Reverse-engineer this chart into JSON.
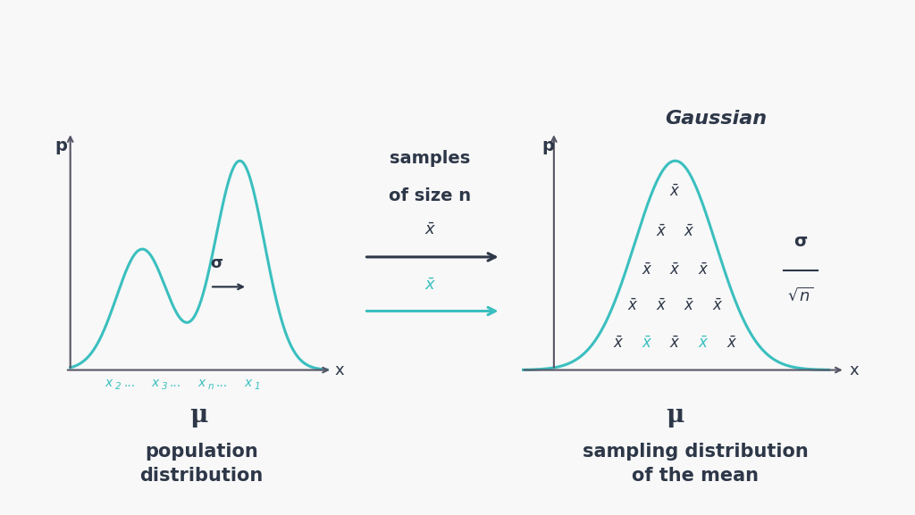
{
  "bg_color": "#f8f8f8",
  "teal_color": "#3bbfbf",
  "dark_color": "#2d3748",
  "gray_color": "#555566",
  "left_title": "population\ndistribution",
  "right_title": "sampling distribution\nof the mean",
  "gaussian_label": "Gaussian",
  "left_xlabel": "x",
  "left_ylabel": "p",
  "left_mu": "μ",
  "left_sigma": "σ",
  "right_xlabel": "x",
  "right_ylabel": "p",
  "right_mu": "μ",
  "middle_text_line1": "samples",
  "middle_text_line2": "of size n",
  "sigma_top": "σ",
  "sqrt_n": "√n"
}
